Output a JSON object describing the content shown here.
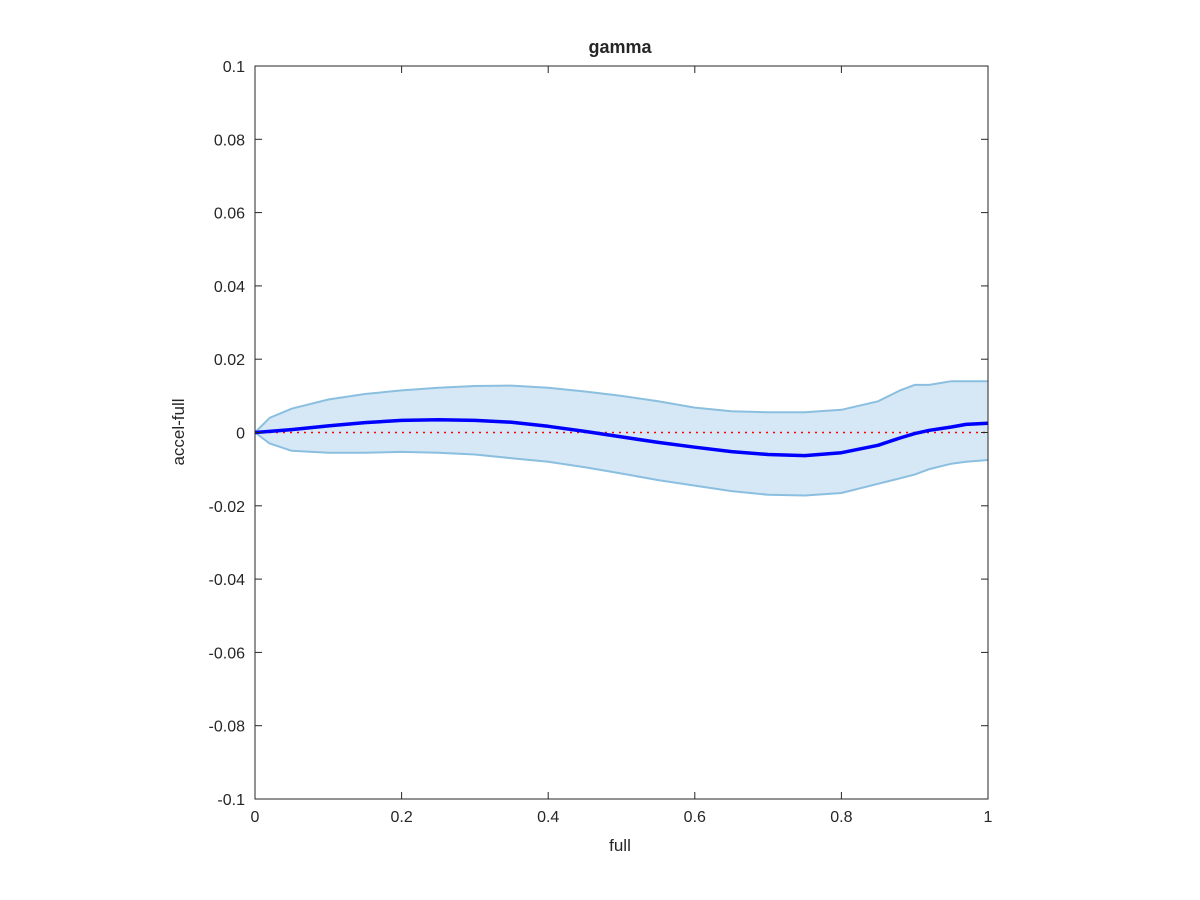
{
  "chart_data": {
    "type": "line",
    "title": "gamma",
    "xlabel": "full",
    "ylabel": "accel-full",
    "xlim": [
      0,
      1
    ],
    "ylim": [
      -0.1,
      0.1
    ],
    "xticks": [
      0,
      0.2,
      0.4,
      0.6,
      0.8,
      1
    ],
    "xtick_labels": [
      "0",
      "0.2",
      "0.4",
      "0.6",
      "0.8",
      "1"
    ],
    "yticks": [
      -0.1,
      -0.08,
      -0.06,
      -0.04,
      -0.02,
      0,
      0.02,
      0.04,
      0.06,
      0.08,
      0.1
    ],
    "ytick_labels": [
      "-0.1",
      "-0.08",
      "-0.06",
      "-0.04",
      "-0.02",
      "0",
      "0.02",
      "0.04",
      "0.06",
      "0.08",
      "0.1"
    ],
    "grid": false,
    "legend": "none",
    "reference_line": {
      "y": 0,
      "style": "dotted",
      "color": "#ff0000"
    },
    "x": [
      0,
      0.02,
      0.05,
      0.1,
      0.15,
      0.2,
      0.25,
      0.3,
      0.35,
      0.4,
      0.45,
      0.5,
      0.55,
      0.6,
      0.65,
      0.7,
      0.75,
      0.8,
      0.85,
      0.88,
      0.9,
      0.92,
      0.95,
      0.97,
      1.0
    ],
    "series": [
      {
        "role": "mean",
        "color": "#0000ff",
        "values": [
          0,
          0.0003,
          0.0008,
          0.0018,
          0.0027,
          0.0033,
          0.0035,
          0.0033,
          0.0028,
          0.0017,
          0.0003,
          -0.0012,
          -0.0027,
          -0.004,
          -0.0052,
          -0.006,
          -0.0063,
          -0.0055,
          -0.0035,
          -0.0015,
          -0.0003,
          0.0006,
          0.0015,
          0.0022,
          0.0025
        ]
      },
      {
        "role": "upper-bound",
        "color": "#8bbfe0",
        "values": [
          0,
          0.004,
          0.0065,
          0.009,
          0.0105,
          0.0115,
          0.0122,
          0.0127,
          0.0128,
          0.0122,
          0.0112,
          0.01,
          0.0085,
          0.0068,
          0.0058,
          0.0055,
          0.0055,
          0.0062,
          0.0085,
          0.0115,
          0.013,
          0.013,
          0.014,
          0.014,
          0.014
        ]
      },
      {
        "role": "lower-bound",
        "color": "#8bbfe0",
        "values": [
          0,
          -0.003,
          -0.005,
          -0.0055,
          -0.0055,
          -0.0053,
          -0.0055,
          -0.006,
          -0.007,
          -0.008,
          -0.0095,
          -0.0112,
          -0.013,
          -0.0145,
          -0.016,
          -0.017,
          -0.0172,
          -0.0165,
          -0.014,
          -0.0125,
          -0.0115,
          -0.01,
          -0.0085,
          -0.008,
          -0.0075
        ]
      }
    ],
    "band_fill_color": "#d6e8f5"
  }
}
